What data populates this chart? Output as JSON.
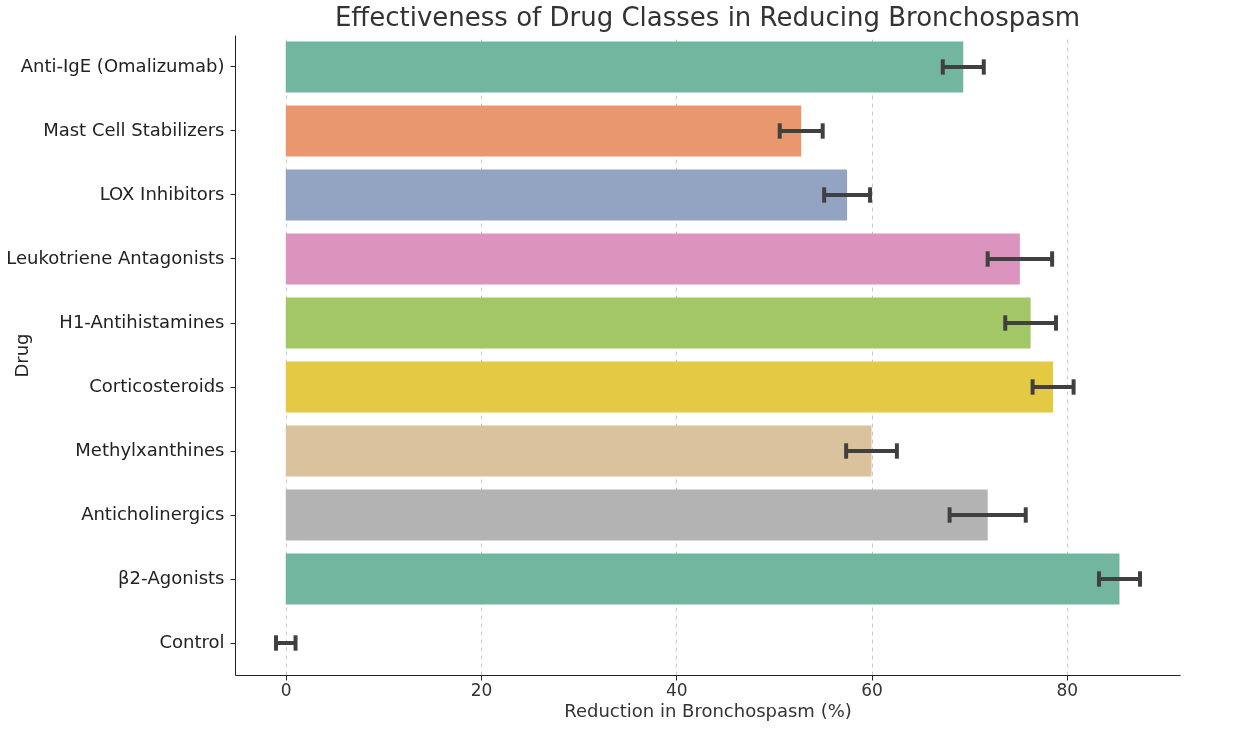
{
  "chart_data": {
    "type": "bar",
    "orientation": "horizontal",
    "title": "Effectiveness of Drug Classes in Reducing Bronchospasm",
    "xlabel": "Reduction in Bronchospasm (%)",
    "ylabel": "Drug",
    "categories": [
      "Anti-IgE (Omalizumab)",
      "Mast Cell Stabilizers",
      "LOX Inhibitors",
      "Leukotriene Antagonists",
      "H1-Antihistamines",
      "Corticosteroids",
      "Methylxanthines",
      "Anticholinergics",
      "β2-Agonists",
      "Control"
    ],
    "values": [
      69.4,
      52.8,
      57.5,
      75.2,
      76.3,
      78.6,
      60.0,
      71.9,
      85.4,
      0
    ],
    "errors": [
      2.1,
      2.2,
      2.35,
      3.3,
      2.6,
      2.1,
      2.6,
      3.9,
      2.1,
      1.0
    ],
    "colors": [
      "#73b6a0",
      "#e8976f",
      "#93a3c2",
      "#db94be",
      "#a3c766",
      "#e3c944",
      "#d9c29c",
      "#b3b3b3",
      "#73b6a0",
      "#73b6a0"
    ],
    "xlim": [
      -5.2,
      91.6
    ],
    "xticks": [
      0,
      20,
      40,
      60,
      80
    ],
    "grid": "x"
  }
}
